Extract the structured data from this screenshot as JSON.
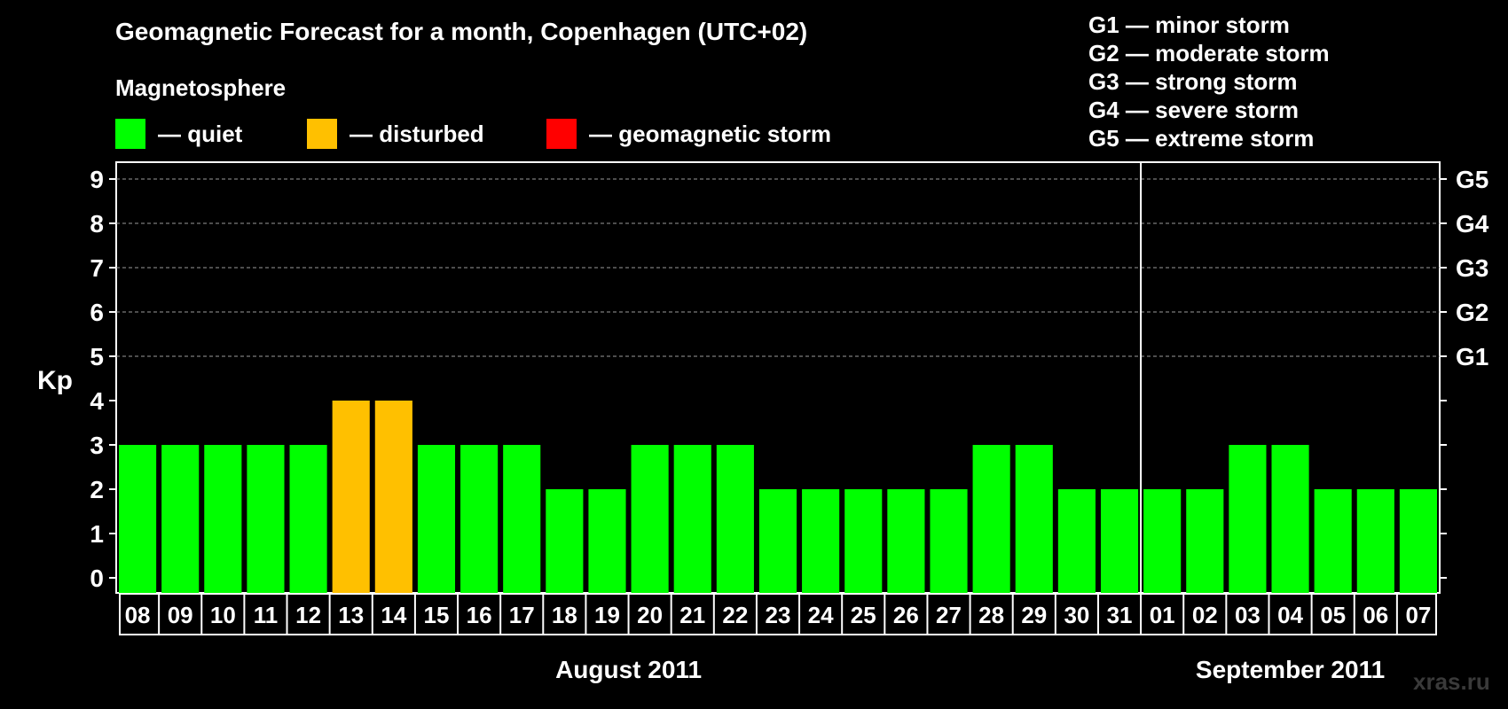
{
  "header": {
    "title": "Geomagnetic Forecast for a month, Copenhagen (UTC+02)",
    "subtitle": "Magnetosphere"
  },
  "legend": [
    {
      "label": "— quiet",
      "color": "#00ff00"
    },
    {
      "label": "— disturbed",
      "color": "#ffc000"
    },
    {
      "label": "— geomagnetic storm",
      "color": "#ff0000"
    }
  ],
  "gscale": [
    "G1 — minor storm",
    "G2 — moderate storm",
    "G3 — strong storm",
    "G4 — severe storm",
    "G5 — extreme storm"
  ],
  "watermark": "xras.ru",
  "chart_data": {
    "type": "bar",
    "ylabel": "Kp",
    "ylim": [
      0,
      9
    ],
    "yticks": [
      "0",
      "1",
      "2",
      "3",
      "4",
      "5",
      "6",
      "7",
      "8",
      "9"
    ],
    "right_labels": [
      {
        "value": 5,
        "label": "G1"
      },
      {
        "value": 6,
        "label": "G2"
      },
      {
        "value": 7,
        "label": "G3"
      },
      {
        "value": 8,
        "label": "G4"
      },
      {
        "value": 9,
        "label": "G5"
      }
    ],
    "grid": "dashed at Kp 5-9",
    "categories": [
      "08",
      "09",
      "10",
      "11",
      "12",
      "13",
      "14",
      "15",
      "16",
      "17",
      "18",
      "19",
      "20",
      "21",
      "22",
      "23",
      "24",
      "25",
      "26",
      "27",
      "28",
      "29",
      "30",
      "31",
      "01",
      "02",
      "03",
      "04",
      "05",
      "06",
      "07"
    ],
    "values": [
      3,
      3,
      3,
      3,
      3,
      4,
      4,
      3,
      3,
      3,
      2,
      2,
      3,
      3,
      3,
      2,
      2,
      2,
      2,
      2,
      3,
      3,
      2,
      2,
      2,
      2,
      3,
      3,
      2,
      2,
      2
    ],
    "status": [
      "quiet",
      "quiet",
      "quiet",
      "quiet",
      "quiet",
      "disturbed",
      "disturbed",
      "quiet",
      "quiet",
      "quiet",
      "quiet",
      "quiet",
      "quiet",
      "quiet",
      "quiet",
      "quiet",
      "quiet",
      "quiet",
      "quiet",
      "quiet",
      "quiet",
      "quiet",
      "quiet",
      "quiet",
      "quiet",
      "quiet",
      "quiet",
      "quiet",
      "quiet",
      "quiet",
      "quiet"
    ],
    "months": [
      {
        "label": "August 2011",
        "start_index": 0,
        "end_index": 23
      },
      {
        "label": "September 2011",
        "start_index": 24,
        "end_index": 30
      }
    ],
    "colors": {
      "quiet": "#00ff00",
      "disturbed": "#ffc000",
      "storm": "#ff0000"
    }
  }
}
